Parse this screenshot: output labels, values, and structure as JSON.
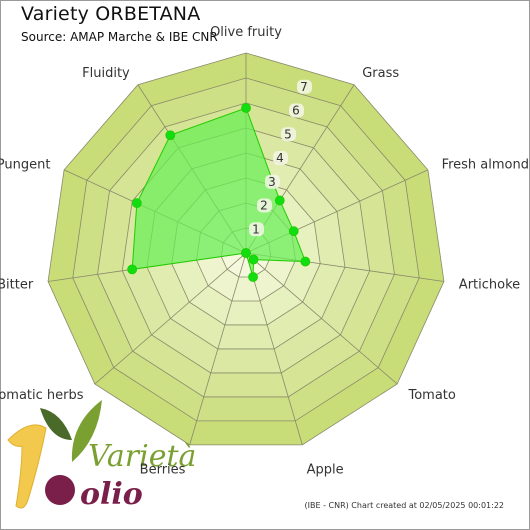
{
  "title": "Variety ORBETANA",
  "subtitle": "Source: AMAP Marche & IBE CNR",
  "credit": "(IBE - CNR) Chart created at 02/05/2025 00:01:22",
  "logo": {
    "word1": "Varietà",
    "word2": "olio"
  },
  "colors": {
    "ring_outer": "#c8dc78",
    "ring_inner": "#f4f8dc",
    "data_fill": "#66ee55",
    "data_stroke": "#22cc00",
    "point": "#11dd11",
    "grid": "#8a8a6a"
  },
  "chart_data": {
    "type": "radar",
    "title": "Variety ORBETANA",
    "subtitle": "Source: AMAP Marche & IBE CNR",
    "categories": [
      "Olive fruity",
      "Grass",
      "Fresh almond",
      "Artichoke",
      "Tomato",
      "Apple",
      "Berries",
      "Aromatic herbs",
      "Bitter",
      "Pungent",
      "Fluidity"
    ],
    "series": [
      {
        "values": [
          5.8,
          2.5,
          2.1,
          2.4,
          0.4,
          1.0,
          0,
          0,
          4.6,
          4.8,
          5.6
        ]
      }
    ],
    "rlim": [
      0,
      8
    ],
    "ticks": [
      "1",
      "2",
      "3",
      "4",
      "5",
      "6",
      "7"
    ],
    "grid": true
  }
}
